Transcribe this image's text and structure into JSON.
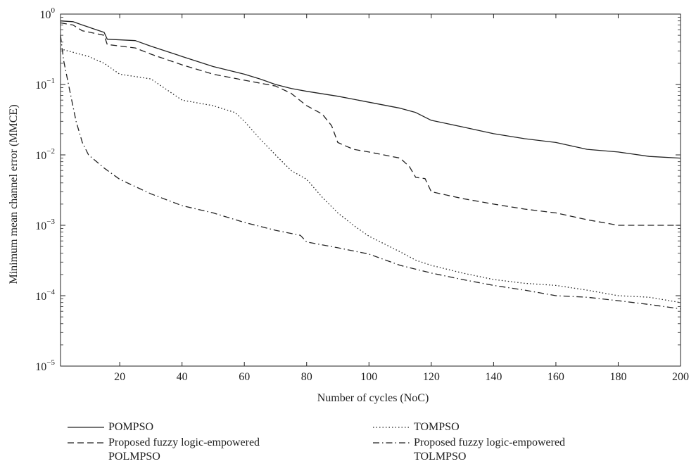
{
  "chart_data": {
    "type": "line",
    "xlabel": "Number of cycles (NoC)",
    "ylabel": "Minimum mean channel error (MMCE)",
    "xlim": [
      1,
      200
    ],
    "ylim": [
      1e-05,
      1
    ],
    "yscale": "log",
    "xticks": [
      20,
      40,
      60,
      80,
      100,
      120,
      140,
      160,
      180,
      200
    ],
    "yticks": [
      {
        "value": 1,
        "base": "10",
        "exp": "0"
      },
      {
        "value": 0.1,
        "base": "10",
        "exp": "−1"
      },
      {
        "value": 0.01,
        "base": "10",
        "exp": "−2"
      },
      {
        "value": 0.001,
        "base": "10",
        "exp": "−3"
      },
      {
        "value": 0.0001,
        "base": "10",
        "exp": "−4"
      },
      {
        "value": 1e-05,
        "base": "10",
        "exp": "−5"
      }
    ],
    "grid": false,
    "legend_position": "below",
    "series": [
      {
        "name": "POMPSO",
        "style": "solid",
        "color": "#222222",
        "points": [
          [
            1,
            0.8
          ],
          [
            5,
            0.78
          ],
          [
            8,
            0.7
          ],
          [
            15,
            0.55
          ],
          [
            16,
            0.44
          ],
          [
            25,
            0.42
          ],
          [
            30,
            0.35
          ],
          [
            40,
            0.25
          ],
          [
            50,
            0.18
          ],
          [
            60,
            0.14
          ],
          [
            65,
            0.12
          ],
          [
            70,
            0.1
          ],
          [
            75,
            0.088
          ],
          [
            80,
            0.08
          ],
          [
            90,
            0.068
          ],
          [
            100,
            0.056
          ],
          [
            110,
            0.046
          ],
          [
            115,
            0.04
          ],
          [
            120,
            0.031
          ],
          [
            130,
            0.025
          ],
          [
            140,
            0.02
          ],
          [
            150,
            0.017
          ],
          [
            160,
            0.015
          ],
          [
            170,
            0.012
          ],
          [
            180,
            0.011
          ],
          [
            190,
            0.0095
          ],
          [
            200,
            0.009
          ]
        ]
      },
      {
        "name": "Proposed fuzzy logic-empowered POLMPSO",
        "legend_lines": [
          "Proposed fuzzy logic-empowered",
          "POLMPSO"
        ],
        "style": "dashed",
        "color": "#222222",
        "points": [
          [
            1,
            0.75
          ],
          [
            5,
            0.7
          ],
          [
            8,
            0.58
          ],
          [
            15,
            0.5
          ],
          [
            16,
            0.37
          ],
          [
            25,
            0.33
          ],
          [
            30,
            0.27
          ],
          [
            40,
            0.19
          ],
          [
            50,
            0.14
          ],
          [
            60,
            0.115
          ],
          [
            70,
            0.095
          ],
          [
            75,
            0.075
          ],
          [
            80,
            0.05
          ],
          [
            85,
            0.038
          ],
          [
            88,
            0.026
          ],
          [
            90,
            0.015
          ],
          [
            95,
            0.012
          ],
          [
            100,
            0.011
          ],
          [
            110,
            0.009
          ],
          [
            113,
            0.0068
          ],
          [
            115,
            0.0048
          ],
          [
            118,
            0.0046
          ],
          [
            120,
            0.003
          ],
          [
            130,
            0.0024
          ],
          [
            140,
            0.002
          ],
          [
            150,
            0.0017
          ],
          [
            160,
            0.0015
          ],
          [
            170,
            0.0012
          ],
          [
            180,
            0.001
          ],
          [
            200,
            0.001
          ]
        ]
      },
      {
        "name": "TOMPSO",
        "style": "dotted",
        "color": "#222222",
        "points": [
          [
            1,
            0.32
          ],
          [
            10,
            0.25
          ],
          [
            15,
            0.2
          ],
          [
            20,
            0.14
          ],
          [
            30,
            0.12
          ],
          [
            40,
            0.06
          ],
          [
            50,
            0.05
          ],
          [
            57,
            0.04
          ],
          [
            60,
            0.03
          ],
          [
            65,
            0.017
          ],
          [
            70,
            0.01
          ],
          [
            75,
            0.006
          ],
          [
            80,
            0.0045
          ],
          [
            85,
            0.0025
          ],
          [
            90,
            0.0015
          ],
          [
            95,
            0.001
          ],
          [
            100,
            0.0007
          ],
          [
            110,
            0.00042
          ],
          [
            115,
            0.00032
          ],
          [
            120,
            0.00027
          ],
          [
            130,
            0.00021
          ],
          [
            140,
            0.00017
          ],
          [
            150,
            0.00015
          ],
          [
            160,
            0.00014
          ],
          [
            170,
            0.00012
          ],
          [
            180,
            0.0001
          ],
          [
            190,
            9.5e-05
          ],
          [
            200,
            8e-05
          ]
        ]
      },
      {
        "name": "Proposed fuzzy logic-empowered TOLMPSO",
        "legend_lines": [
          "Proposed fuzzy logic-empowered",
          "TOLMPSO"
        ],
        "style": "dashdot",
        "color": "#222222",
        "points": [
          [
            1,
            0.5
          ],
          [
            2,
            0.22
          ],
          [
            4,
            0.08
          ],
          [
            6,
            0.03
          ],
          [
            8,
            0.015
          ],
          [
            10,
            0.01
          ],
          [
            15,
            0.0065
          ],
          [
            20,
            0.0045
          ],
          [
            30,
            0.0028
          ],
          [
            40,
            0.0019
          ],
          [
            50,
            0.0015
          ],
          [
            60,
            0.0011
          ],
          [
            70,
            0.00085
          ],
          [
            78,
            0.00072
          ],
          [
            80,
            0.00058
          ],
          [
            90,
            0.00048
          ],
          [
            100,
            0.00039
          ],
          [
            110,
            0.00027
          ],
          [
            120,
            0.00021
          ],
          [
            130,
            0.00017
          ],
          [
            140,
            0.00014
          ],
          [
            150,
            0.00012
          ],
          [
            160,
            0.0001
          ],
          [
            170,
            9.5e-05
          ],
          [
            180,
            8.5e-05
          ],
          [
            190,
            7.5e-05
          ],
          [
            200,
            6.5e-05
          ]
        ]
      }
    ]
  }
}
